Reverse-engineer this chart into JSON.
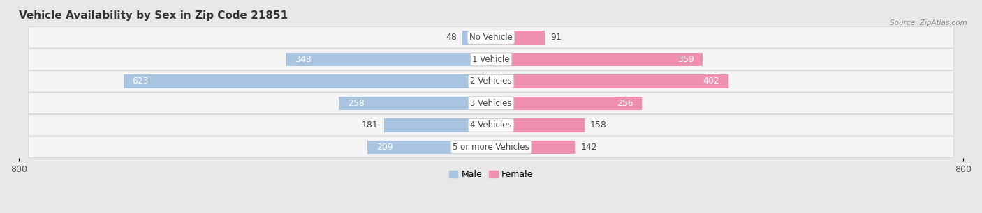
{
  "title": "Vehicle Availability by Sex in Zip Code 21851",
  "source_text": "Source: ZipAtlas.com",
  "categories": [
    "No Vehicle",
    "1 Vehicle",
    "2 Vehicles",
    "3 Vehicles",
    "4 Vehicles",
    "5 or more Vehicles"
  ],
  "male_values": [
    48,
    348,
    623,
    258,
    181,
    209
  ],
  "female_values": [
    91,
    359,
    402,
    256,
    158,
    142
  ],
  "male_color": "#a8c4e0",
  "female_color": "#f090b0",
  "label_color_dark": "#444444",
  "label_color_white": "#ffffff",
  "axis_limit": 800,
  "bg_color": "#e8e8e8",
  "row_bg_color": "#f2f2f2",
  "bar_height": 0.62,
  "legend_male_label": "Male",
  "legend_female_label": "Female",
  "title_fontsize": 11,
  "label_fontsize": 9,
  "axis_tick_fontsize": 9
}
